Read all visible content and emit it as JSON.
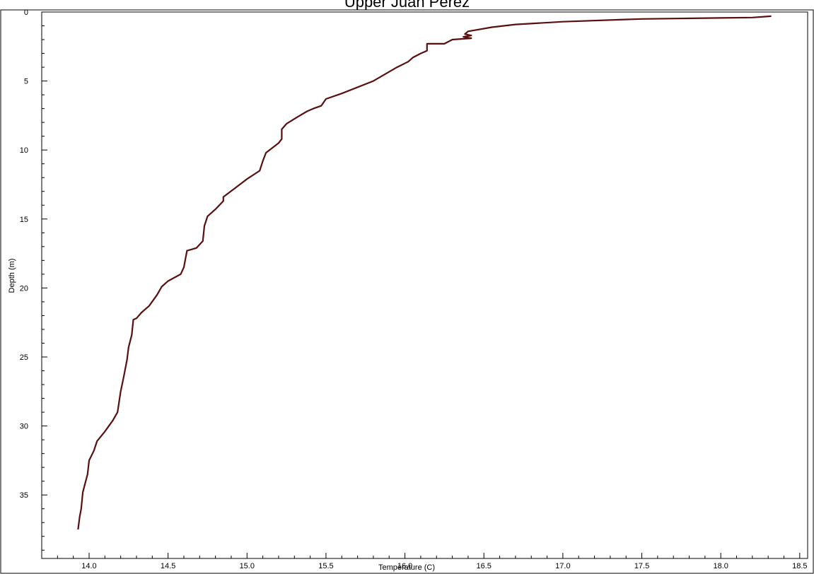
{
  "chart_data": {
    "type": "line",
    "title": "Upper Juan Perez",
    "xlabel": "Temperature (C)",
    "ylabel": "Depth (m)",
    "xlim": [
      13.7,
      18.55
    ],
    "ylim": [
      0,
      39.6
    ],
    "y_inverted": true,
    "grid": false,
    "x_ticks": [
      "14.0",
      "14.5",
      "15.0",
      "15.5",
      "16.0",
      "16.5",
      "17.0",
      "17.5",
      "18.0",
      "18.5"
    ],
    "y_ticks": [
      "0",
      "5",
      "10",
      "15",
      "20",
      "25",
      "30",
      "35"
    ],
    "series": [
      {
        "color": "#5a0f0f",
        "x": [
          18.32,
          18.2,
          17.5,
          17.0,
          16.7,
          16.55,
          16.45,
          16.4,
          16.38,
          16.42,
          16.37,
          16.42,
          16.3,
          16.25,
          16.14,
          16.14,
          16.1,
          16.05,
          16.02,
          15.95,
          15.8,
          15.6,
          15.5,
          15.47,
          15.42,
          15.38,
          15.32,
          15.25,
          15.22,
          15.22,
          15.2,
          15.12,
          15.1,
          15.08,
          15.0,
          14.92,
          14.85,
          14.85,
          14.8,
          14.75,
          14.73,
          14.72,
          14.68,
          14.62,
          14.6,
          14.58,
          14.5,
          14.46,
          14.43,
          14.38,
          14.35,
          14.33,
          14.3,
          14.28,
          14.27,
          14.25,
          14.24,
          14.22,
          14.2,
          14.18,
          14.15,
          14.1,
          14.05,
          14.03,
          14.0,
          13.99,
          13.96,
          13.95,
          13.94,
          13.93
        ],
        "y": [
          0.3,
          0.4,
          0.5,
          0.7,
          0.9,
          1.1,
          1.3,
          1.4,
          1.6,
          1.7,
          1.8,
          1.9,
          2.0,
          2.3,
          2.3,
          2.8,
          3.0,
          3.3,
          3.6,
          4.0,
          5.0,
          5.9,
          6.3,
          6.8,
          7.0,
          7.2,
          7.6,
          8.1,
          8.5,
          9.2,
          9.5,
          10.2,
          10.8,
          11.5,
          12.1,
          12.8,
          13.4,
          13.7,
          14.3,
          14.8,
          15.5,
          16.6,
          17.1,
          17.3,
          18.5,
          19.0,
          19.5,
          19.9,
          20.5,
          21.3,
          21.6,
          21.8,
          22.2,
          22.3,
          23.4,
          24.3,
          25.2,
          26.4,
          27.5,
          29.0,
          29.6,
          30.4,
          31.1,
          31.8,
          32.5,
          33.5,
          34.8,
          36.0,
          36.6,
          37.5
        ]
      }
    ]
  }
}
